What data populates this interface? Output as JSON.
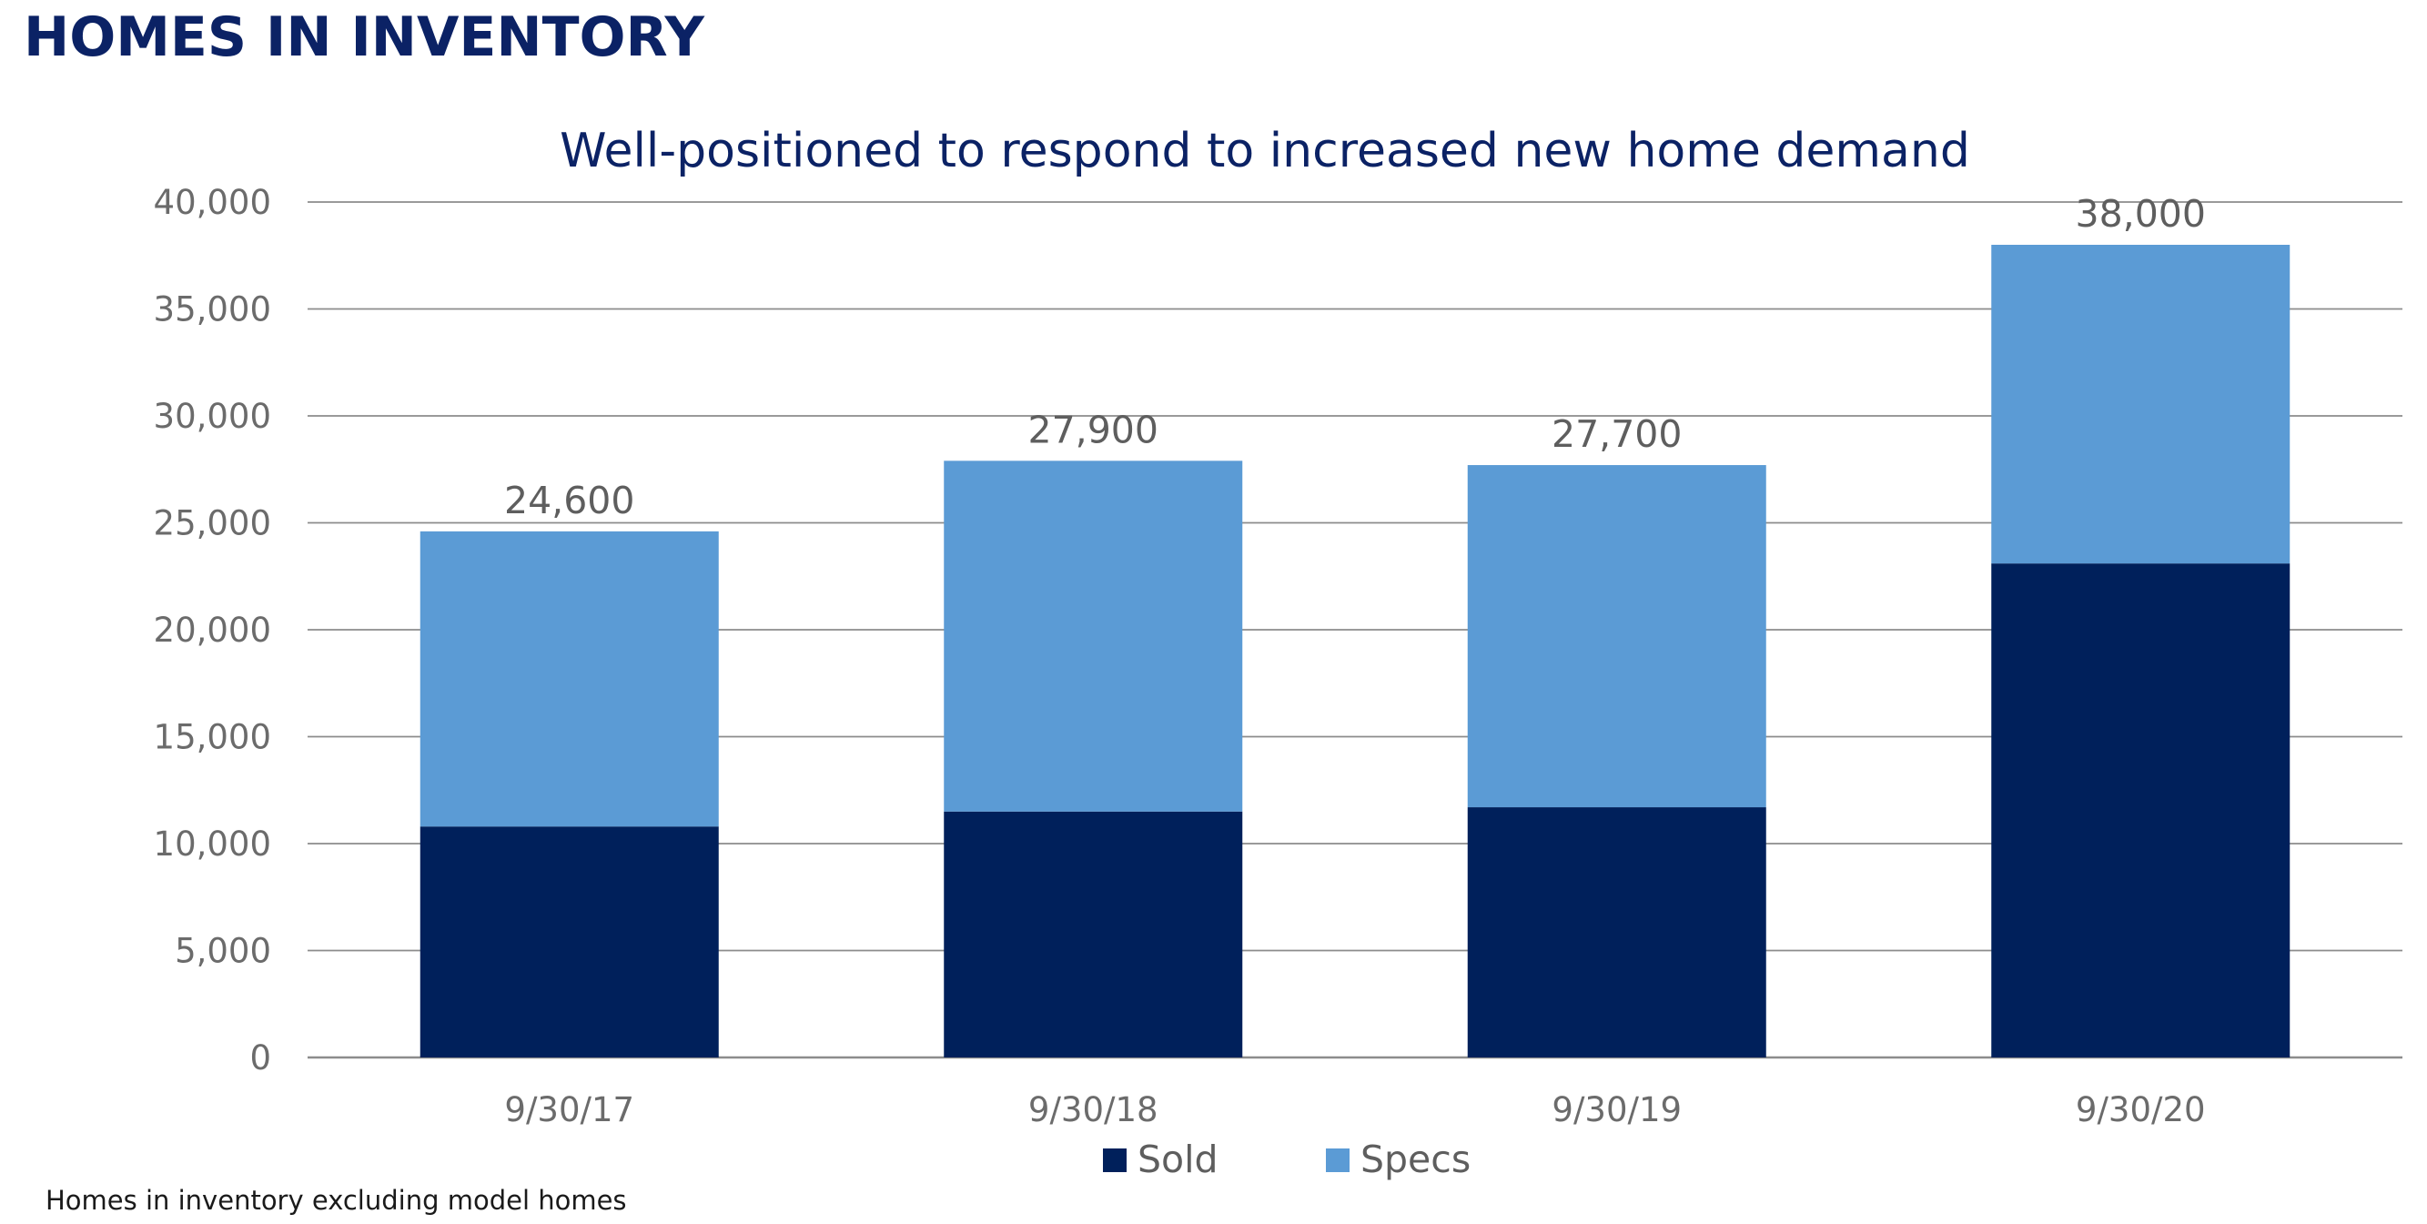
{
  "page": {
    "title": "HOMES IN INVENTORY",
    "footnote": "Homes in inventory excluding model homes"
  },
  "chart_data": {
    "type": "bar",
    "stacked": true,
    "title": "Well-positioned to respond to increased new home demand",
    "xlabel": "",
    "ylabel": "",
    "categories": [
      "9/30/17",
      "9/30/18",
      "9/30/19",
      "9/30/20"
    ],
    "series": [
      {
        "name": "Sold",
        "values": [
          10800,
          11500,
          11700,
          23100
        ],
        "color": "#00205b"
      },
      {
        "name": "Specs",
        "values": [
          13800,
          16400,
          16000,
          14900
        ],
        "color": "#5b9bd5"
      }
    ],
    "totals": [
      24600,
      27900,
      27700,
      38000
    ],
    "total_labels": [
      "24,600",
      "27,900",
      "27,700",
      "38,000"
    ],
    "ylim": [
      0,
      40000
    ],
    "yticks": [
      0,
      5000,
      10000,
      15000,
      20000,
      25000,
      30000,
      35000,
      40000
    ],
    "ytick_labels": [
      "0",
      "5,000",
      "10,000",
      "15,000",
      "20,000",
      "25,000",
      "30,000",
      "35,000",
      "40,000"
    ],
    "grid": true,
    "gridline_color": "#8c8c8c",
    "legend_position": "bottom-center"
  }
}
